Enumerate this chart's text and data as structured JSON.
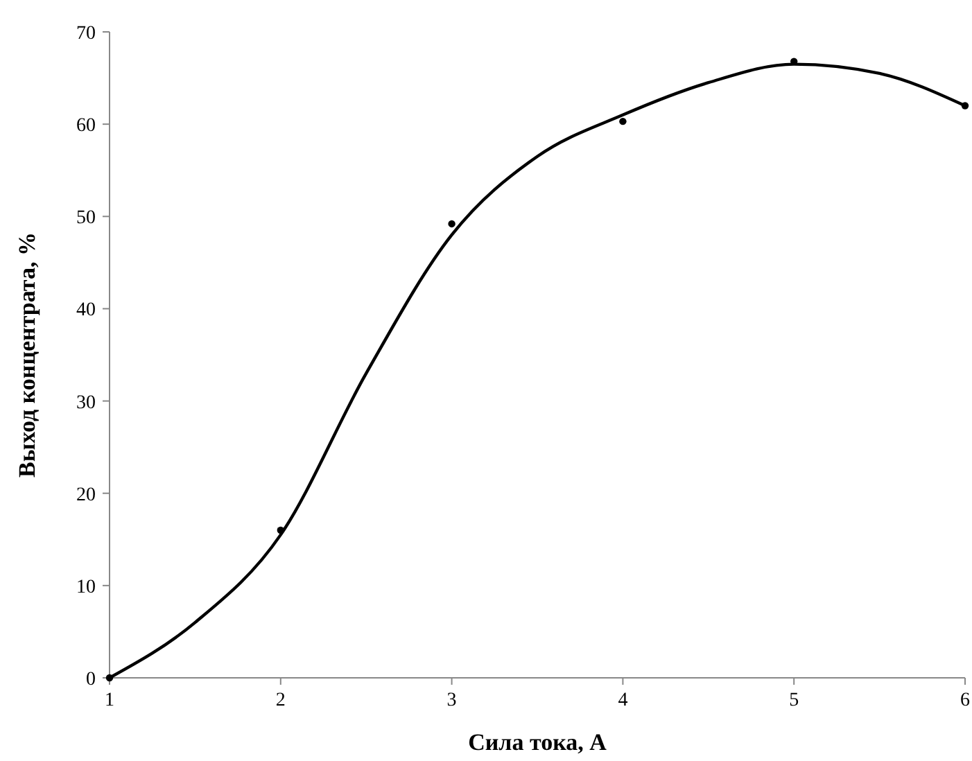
{
  "chart_data": {
    "type": "scatter",
    "xlabel": "Сила тока, А",
    "ylabel": "Выход концентрата, %",
    "x": [
      1,
      2,
      3,
      4,
      5,
      6
    ],
    "xlim": [
      1,
      6
    ],
    "xticks": [
      1,
      2,
      3,
      4,
      5,
      6
    ],
    "ylim": [
      0,
      70
    ],
    "yticks": [
      0,
      10,
      20,
      30,
      40,
      50,
      60,
      70
    ],
    "grid": false,
    "series": [
      {
        "color": "#000000",
        "marker": "circle",
        "values": [
          0,
          16,
          49.2,
          60.3,
          66.8,
          62
        ]
      },
      {
        "type": "line",
        "color": "#000000",
        "marker": "none",
        "line_style": "solid",
        "x": [
          1,
          1.5,
          2,
          2.5,
          3,
          3.5,
          4,
          4.5,
          5,
          5.5,
          6
        ],
        "values": [
          0,
          6,
          15.5,
          33,
          48,
          56.5,
          61,
          64.5,
          66.5,
          65.5,
          62
        ]
      }
    ]
  }
}
